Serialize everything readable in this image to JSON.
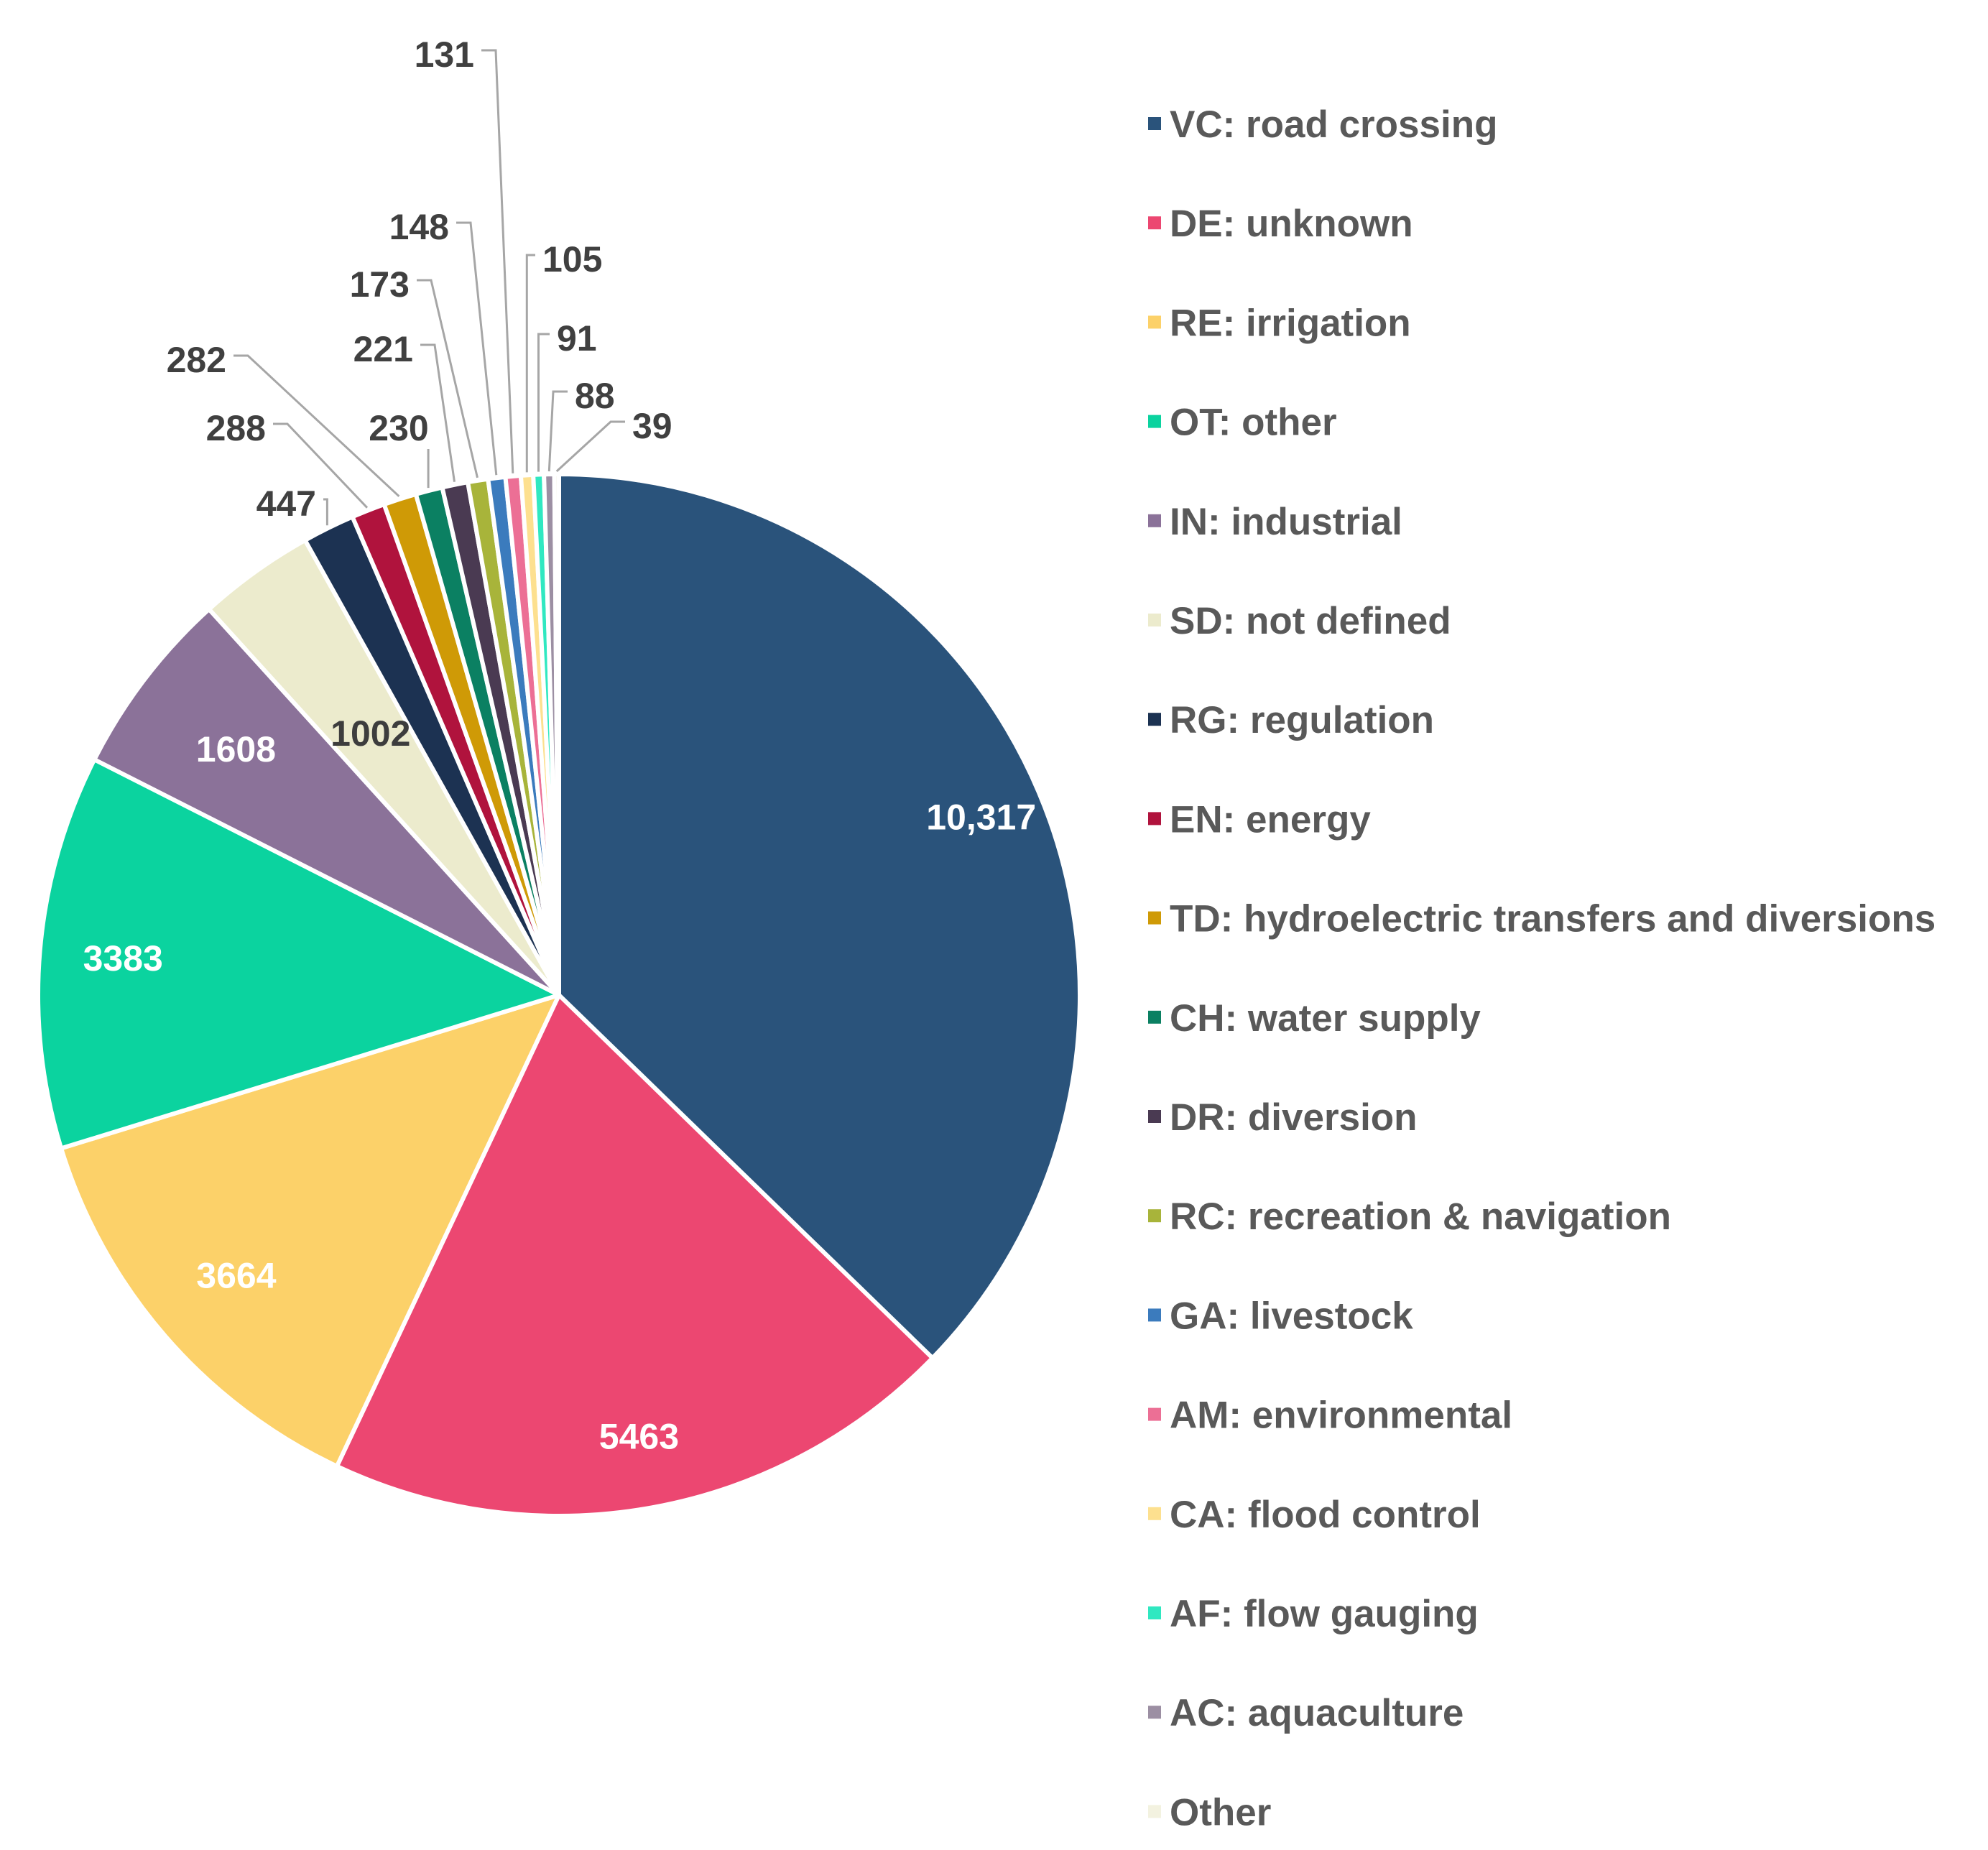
{
  "chart_data": {
    "type": "pie",
    "title": "",
    "legend_position": "right",
    "series": [
      {
        "name": "VC: road crossing",
        "value": 10317,
        "label": "10,317",
        "color": "#2a537b"
      },
      {
        "name": "DE: unknown",
        "value": 5463,
        "label": "5463",
        "color": "#ec4771"
      },
      {
        "name": "RE: irrigation",
        "value": 3664,
        "label": "3664",
        "color": "#fcd169"
      },
      {
        "name": "OT: other",
        "value": 3383,
        "label": "3383",
        "color": "#0bd39f"
      },
      {
        "name": "IN: industrial",
        "value": 1608,
        "label": "1608",
        "color": "#8b7299"
      },
      {
        "name": "SD: not defined",
        "value": 1002,
        "label": "1002",
        "color": "#ecebcd"
      },
      {
        "name": "RG: regulation",
        "value": 447,
        "label": "447",
        "color": "#1c3252"
      },
      {
        "name": "EN: energy",
        "value": 288,
        "label": "288",
        "color": "#b0133d"
      },
      {
        "name": "TD: hydroelectric transfers and diversions",
        "value": 282,
        "label": "282",
        "color": "#cf9a06"
      },
      {
        "name": "CH: water supply",
        "value": 230,
        "label": "230",
        "color": "#0b8062"
      },
      {
        "name": "DR: diversion",
        "value": 221,
        "label": "221",
        "color": "#4a3a52"
      },
      {
        "name": "RC: recreation & navigation",
        "value": 173,
        "label": "173",
        "color": "#a8b43a"
      },
      {
        "name": "GA: livestock",
        "value": 148,
        "label": "148",
        "color": "#3b7bbd"
      },
      {
        "name": "AM: environmental",
        "value": 131,
        "label": "131",
        "color": "#ec6f95"
      },
      {
        "name": "CA: flood control",
        "value": 105,
        "label": "105",
        "color": "#fde08f"
      },
      {
        "name": "AF: flow gauging",
        "value": 91,
        "label": "91",
        "color": "#30e8c1"
      },
      {
        "name": "AC: aquaculture",
        "value": 88,
        "label": "88",
        "color": "#9c8fa3"
      },
      {
        "name": "Other",
        "value": 39,
        "label": "39",
        "color": "#f3f2e0"
      }
    ]
  }
}
